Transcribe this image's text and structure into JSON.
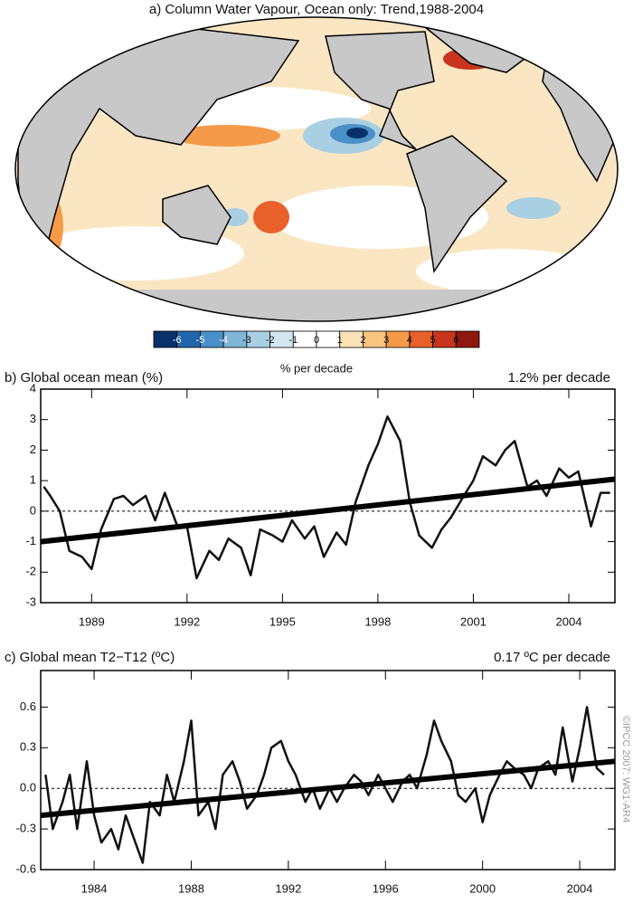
{
  "chart_data": [
    {
      "type": "map",
      "title": "a) Column Water Vapour, Ocean only: Trend,1988-2004",
      "colorbar": {
        "ticks": [
          -6,
          -5,
          -4,
          -3,
          -2,
          -1,
          0,
          1,
          2,
          3,
          4,
          5,
          6
        ],
        "colors": [
          "#08306b",
          "#2166ac",
          "#4a90c8",
          "#80b5d8",
          "#a9cfe3",
          "#d4e6ef",
          "#ffffff",
          "#ffffff",
          "#fde2b8",
          "#fbc47e",
          "#f59a48",
          "#e8602a",
          "#c8341c",
          "#8e1710"
        ],
        "label": "% per decade"
      }
    },
    {
      "type": "line",
      "title": "b) Global ocean mean (%)",
      "annotation": "1.2% per decade",
      "xlim": [
        1987.4,
        2005.45
      ],
      "xticks": [
        1989,
        1992,
        1995,
        1998,
        2001,
        2004
      ],
      "ylim": [
        -3,
        4
      ],
      "yticks": [
        -3,
        -2,
        -1,
        0,
        1,
        2,
        3,
        4
      ],
      "series": [
        {
          "color": "#111111",
          "width": 2.5,
          "x": [
            1987.5,
            1987.7,
            1988,
            1988.3,
            1988.7,
            1989,
            1989.3,
            1989.7,
            1990,
            1990.3,
            1990.7,
            1991,
            1991.3,
            1991.7,
            1992,
            1992.3,
            1992.7,
            1993,
            1993.3,
            1993.7,
            1994,
            1994.3,
            1994.7,
            1995,
            1995.3,
            1995.7,
            1996,
            1996.3,
            1996.7,
            1997,
            1997.3,
            1997.7,
            1998,
            1998.3,
            1998.7,
            1999,
            1999.3,
            1999.7,
            2000,
            2000.3,
            2000.7,
            2001,
            2001.3,
            2001.7,
            2002,
            2002.3,
            2002.7,
            2003,
            2003.3,
            2003.7,
            2004,
            2004.3,
            2004.7,
            2005,
            2005.3
          ],
          "values": [
            0.8,
            0.5,
            0,
            -1.3,
            -1.5,
            -1.9,
            -0.6,
            0.4,
            0.5,
            0.2,
            0.5,
            -0.3,
            0.6,
            -0.5,
            -0.5,
            -2.2,
            -1.3,
            -1.6,
            -0.9,
            -1.2,
            -2.1,
            -0.6,
            -0.8,
            -1.0,
            -0.3,
            -0.9,
            -0.5,
            -1.5,
            -0.7,
            -1.1,
            0.3,
            1.5,
            2.2,
            3.1,
            2.3,
            0.3,
            -0.8,
            -1.2,
            -0.6,
            -0.2,
            0.5,
            1.0,
            1.8,
            1.5,
            2.0,
            2.3,
            0.8,
            1.0,
            0.5,
            1.4,
            1.1,
            1.3,
            -0.5,
            0.6,
            0.6
          ]
        },
        {
          "color": "#000000",
          "width": 6,
          "x": [
            1987.4,
            2005.45
          ],
          "values": [
            -1.0,
            1.05
          ]
        }
      ]
    },
    {
      "type": "line",
      "title": "c) Global mean T2−T12 (ºC)",
      "annotation": "0.17 ºC per decade",
      "xlim": [
        1981.8,
        2005.45
      ],
      "xticks": [
        1984,
        1988,
        1992,
        1996,
        2000,
        2004
      ],
      "ylim": [
        -0.6,
        0.87
      ],
      "yticks": [
        -0.6,
        -0.3,
        {
          "value": 0,
          "label": "0.0"
        },
        0.3,
        0.6
      ],
      "series": [
        {
          "color": "#111111",
          "width": 2.5,
          "x": [
            1982,
            1982.3,
            1982.7,
            1983,
            1983.3,
            1983.7,
            1984,
            1984.3,
            1984.7,
            1985,
            1985.3,
            1985.7,
            1986,
            1986.3,
            1986.7,
            1987,
            1987.3,
            1987.7,
            1988,
            1988.3,
            1988.7,
            1989,
            1989.3,
            1989.7,
            1990,
            1990.3,
            1990.7,
            1991,
            1991.3,
            1991.7,
            1992,
            1992.3,
            1992.7,
            1993,
            1993.3,
            1993.7,
            1994,
            1994.3,
            1994.7,
            1995,
            1995.3,
            1995.7,
            1996,
            1996.3,
            1996.7,
            1997,
            1997.3,
            1997.7,
            1998,
            1998.3,
            1998.7,
            1999,
            1999.3,
            1999.7,
            2000,
            2000.3,
            2000.7,
            2001,
            2001.3,
            2001.7,
            2002,
            2002.3,
            2002.7,
            2003,
            2003.3,
            2003.7,
            2004,
            2004.3,
            2004.7,
            2005
          ],
          "values": [
            0.1,
            -0.3,
            -0.1,
            0.1,
            -0.3,
            0.2,
            -0.2,
            -0.4,
            -0.3,
            -0.45,
            -0.2,
            -0.4,
            -0.55,
            -0.1,
            -0.2,
            0.1,
            -0.1,
            0.2,
            0.5,
            -0.2,
            -0.1,
            -0.3,
            0.1,
            0.2,
            0.05,
            -0.15,
            -0.05,
            0.1,
            0.3,
            0.35,
            0.2,
            0.1,
            -0.1,
            0.0,
            -0.15,
            0.0,
            -0.1,
            0.0,
            0.1,
            0.05,
            -0.05,
            0.1,
            0.0,
            -0.1,
            0.05,
            0.1,
            0.0,
            0.25,
            0.5,
            0.35,
            0.2,
            -0.05,
            -0.1,
            0.0,
            -0.25,
            -0.05,
            0.1,
            0.2,
            0.15,
            0.1,
            0.0,
            0.15,
            0.2,
            0.1,
            0.45,
            0.05,
            0.3,
            0.6,
            0.15,
            0.1
          ]
        },
        {
          "color": "#000000",
          "width": 6,
          "x": [
            1981.8,
            2005.45
          ],
          "values": [
            -0.2,
            0.2
          ]
        }
      ]
    }
  ],
  "credit": "©IPCC 2007: WG1-AR4"
}
